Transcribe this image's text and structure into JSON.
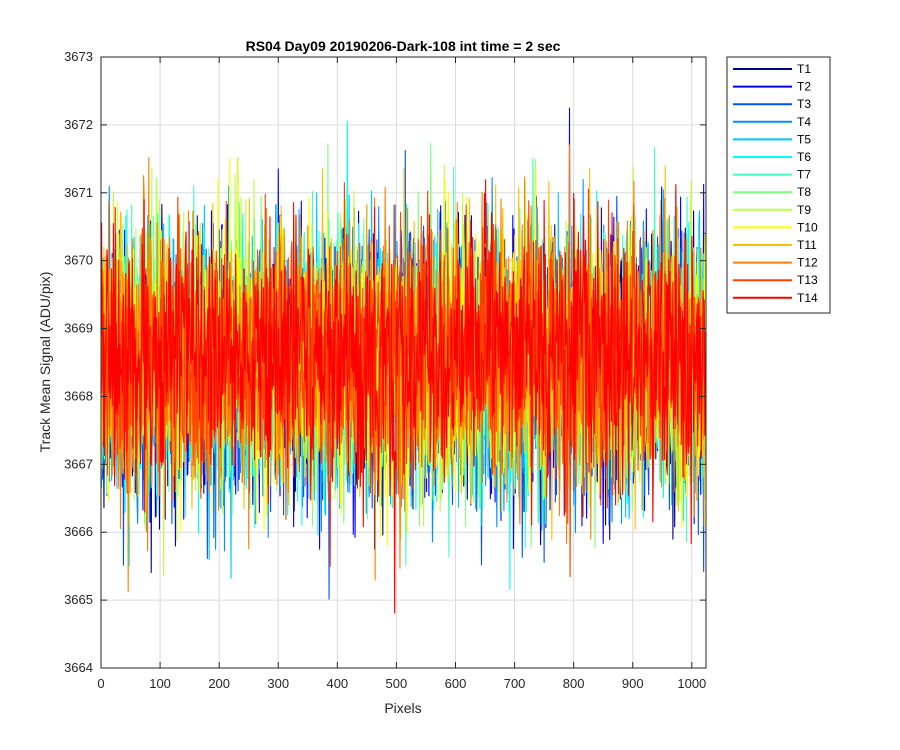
{
  "chart_data": {
    "type": "line",
    "title": "RS04 Day09 20190206-Dark-108 int time = 2 sec",
    "xlabel": "Pixels",
    "ylabel": "Track Mean Signal (ADU/pix)",
    "xlim": [
      0,
      1024
    ],
    "ylim": [
      3664,
      3673
    ],
    "xticks": [
      0,
      100,
      200,
      300,
      400,
      500,
      600,
      700,
      800,
      900,
      1000
    ],
    "yticks": [
      3664,
      3665,
      3666,
      3667,
      3668,
      3669,
      3670,
      3671,
      3672,
      3673
    ],
    "grid": true,
    "legend_position": "outside-top-right",
    "noise": {
      "mean": 3668.5,
      "typical_range": [
        3666,
        3671
      ],
      "observed_min": 3664.5,
      "observed_max": 3672.5
    },
    "series": [
      {
        "name": "T1",
        "color": "#00008f"
      },
      {
        "name": "T2",
        "color": "#0000ff"
      },
      {
        "name": "T3",
        "color": "#0050ff"
      },
      {
        "name": "T4",
        "color": "#008fff"
      },
      {
        "name": "T5",
        "color": "#00c4ff"
      },
      {
        "name": "T6",
        "color": "#00ffff"
      },
      {
        "name": "T7",
        "color": "#40ffbf"
      },
      {
        "name": "T8",
        "color": "#80ff80"
      },
      {
        "name": "T9",
        "color": "#bfff40"
      },
      {
        "name": "T10",
        "color": "#ffff00"
      },
      {
        "name": "T11",
        "color": "#ffbf00"
      },
      {
        "name": "T12",
        "color": "#ff8000"
      },
      {
        "name": "T13",
        "color": "#ff4000"
      },
      {
        "name": "T14",
        "color": "#ff0000"
      }
    ]
  }
}
